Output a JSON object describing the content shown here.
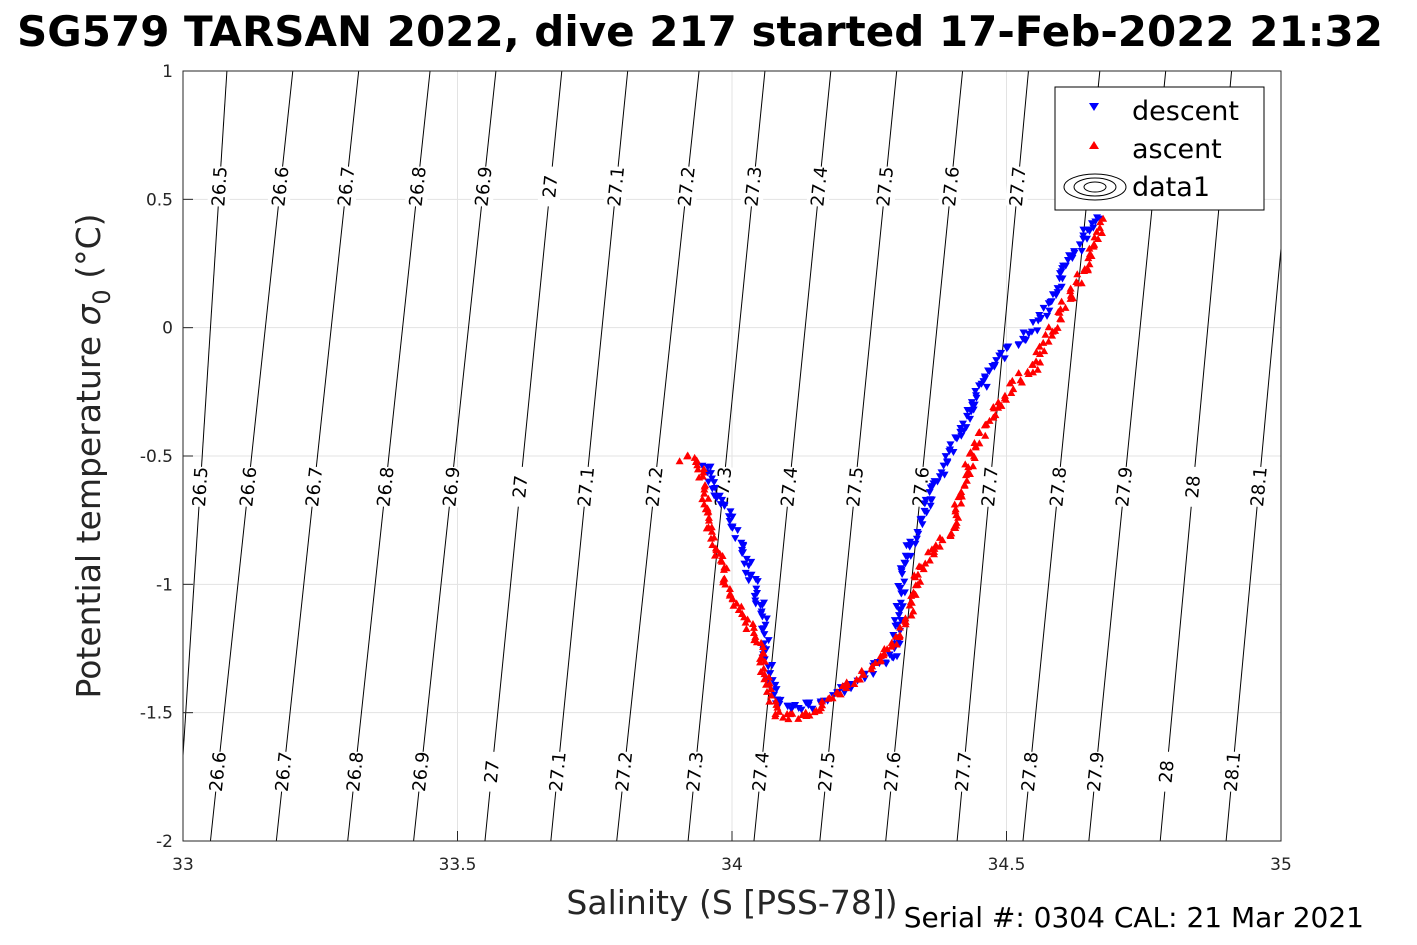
{
  "chart_data": {
    "type": "scatter",
    "title": "SG579 TARSAN 2022, dive 217 started 17-Feb-2022 21:32",
    "xlabel": "Salinity (S [PSS-78])",
    "ylabel_main": "Potential temperature ",
    "ylabel_sigma": "σ",
    "ylabel_sub": "0",
    "ylabel_unit": " (°C)",
    "xlim": [
      33,
      35
    ],
    "ylim": [
      -2,
      1
    ],
    "xticks": [
      33,
      33.5,
      34,
      34.5,
      35
    ],
    "xtick_labels": [
      "33",
      "33.5",
      "34",
      "34.5",
      "35"
    ],
    "yticks": [
      1,
      0.5,
      0,
      -0.5,
      -1,
      -1.5,
      -2
    ],
    "ytick_labels": [
      "1",
      "0.5",
      "0",
      "-0.5",
      "-1",
      "-1.5",
      "-2"
    ],
    "grid": true,
    "legend_position": "top-right",
    "legend": [
      "descent",
      "ascent",
      "data1"
    ],
    "contours": {
      "levels": [
        26.5,
        26.6,
        26.7,
        26.8,
        26.9,
        27,
        27.1,
        27.2,
        27.3,
        27.4,
        27.5,
        27.6,
        27.7,
        27.8,
        27.9,
        28,
        28.1
      ],
      "labels": [
        "26.5",
        "26.6",
        "26.7",
        "26.8",
        "26.9",
        "27",
        "27.1",
        "27.2",
        "27.3",
        "27.4",
        "27.5",
        "27.6",
        "27.7",
        "27.8",
        "27.9",
        "28",
        "28.1"
      ],
      "salinity_at_top": [
        33.08,
        33.2,
        33.32,
        33.45,
        33.57,
        33.69,
        33.81,
        33.94,
        34.06,
        34.18,
        34.3,
        34.42,
        34.54,
        34.67,
        34.79,
        34.91,
        35.03
      ],
      "salinity_at_bottom": [
        32.99,
        33.05,
        33.17,
        33.3,
        33.42,
        33.55,
        33.67,
        33.79,
        33.92,
        34.04,
        34.16,
        34.28,
        34.41,
        34.53,
        34.65,
        34.78,
        34.9
      ]
    },
    "series": [
      {
        "name": "descent",
        "color": "#0000ff",
        "marker": "triangle-down",
        "path": [
          [
            33.95,
            -0.53
          ],
          [
            33.97,
            -0.62
          ],
          [
            33.99,
            -0.72
          ],
          [
            34.02,
            -0.86
          ],
          [
            34.04,
            -1.0
          ],
          [
            34.06,
            -1.12
          ],
          [
            34.06,
            -1.25
          ],
          [
            34.07,
            -1.35
          ],
          [
            34.08,
            -1.45
          ],
          [
            34.1,
            -1.48
          ],
          [
            34.15,
            -1.47
          ],
          [
            34.2,
            -1.42
          ],
          [
            34.24,
            -1.36
          ],
          [
            34.27,
            -1.3
          ],
          [
            34.3,
            -1.28
          ],
          [
            34.3,
            -1.18
          ],
          [
            34.31,
            -1.05
          ],
          [
            34.31,
            -0.95
          ],
          [
            34.33,
            -0.82
          ],
          [
            34.36,
            -0.68
          ],
          [
            34.38,
            -0.58
          ],
          [
            34.4,
            -0.48
          ],
          [
            34.42,
            -0.38
          ],
          [
            34.45,
            -0.25
          ],
          [
            34.48,
            -0.12
          ],
          [
            34.52,
            -0.06
          ],
          [
            34.55,
            0.0
          ],
          [
            34.58,
            0.1
          ],
          [
            34.6,
            0.2
          ],
          [
            34.63,
            0.3
          ],
          [
            34.65,
            0.38
          ],
          [
            34.67,
            0.45
          ]
        ]
      },
      {
        "name": "ascent",
        "color": "#ff0000",
        "marker": "triangle-up",
        "path": [
          [
            33.91,
            -0.51
          ],
          [
            33.94,
            -0.52
          ],
          [
            33.95,
            -0.62
          ],
          [
            33.96,
            -0.78
          ],
          [
            33.98,
            -0.92
          ],
          [
            34.0,
            -1.05
          ],
          [
            34.03,
            -1.15
          ],
          [
            34.05,
            -1.22
          ],
          [
            34.06,
            -1.35
          ],
          [
            34.07,
            -1.45
          ],
          [
            34.09,
            -1.52
          ],
          [
            34.13,
            -1.51
          ],
          [
            34.18,
            -1.45
          ],
          [
            34.22,
            -1.38
          ],
          [
            34.26,
            -1.32
          ],
          [
            34.3,
            -1.22
          ],
          [
            34.33,
            -1.08
          ],
          [
            34.34,
            -0.95
          ],
          [
            34.37,
            -0.85
          ],
          [
            34.4,
            -0.8
          ],
          [
            34.42,
            -0.62
          ],
          [
            34.44,
            -0.48
          ],
          [
            34.47,
            -0.35
          ],
          [
            34.5,
            -0.25
          ],
          [
            34.55,
            -0.15
          ],
          [
            34.58,
            -0.02
          ],
          [
            34.61,
            0.1
          ],
          [
            34.64,
            0.22
          ],
          [
            34.66,
            0.32
          ],
          [
            34.68,
            0.42
          ]
        ]
      }
    ]
  },
  "footer": "Serial #: 0304  CAL: 21 Mar 2021"
}
